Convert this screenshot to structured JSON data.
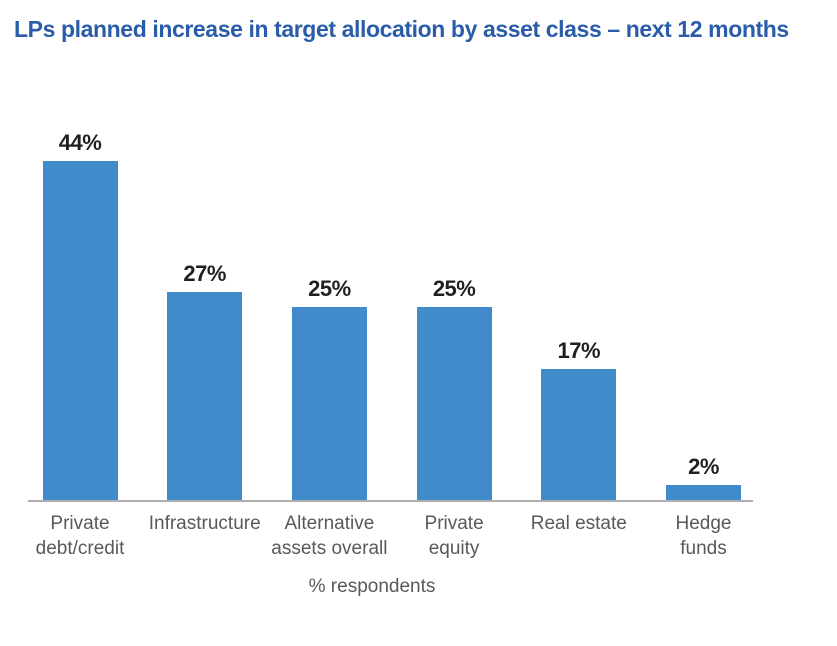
{
  "page": {
    "title": "LPs planned increase in target allocation by asset class – next 12 months"
  },
  "colors": {
    "bar": "#428BCA",
    "title_text": "#2B5CA9",
    "value_label_text": "#231F20",
    "category_label_text": "#58595B",
    "axis_line": "#ABADB0",
    "background": "#FFFFFF"
  },
  "chart_data": {
    "type": "bar",
    "title": "LPs planned increase in target allocation by asset class – next 12 months",
    "categories": [
      "Private debt/credit",
      "Infrastructure",
      "Alternative assets overall",
      "Private equity",
      "Real estate",
      "Hedge funds"
    ],
    "category_label_lines": [
      [
        "Private",
        "debt/credit"
      ],
      [
        "Infrastructure"
      ],
      [
        "Alternative",
        "assets overall"
      ],
      [
        "Private",
        "equity"
      ],
      [
        "Real estate"
      ],
      [
        "Hedge",
        "funds"
      ]
    ],
    "values": [
      44,
      27,
      25,
      25,
      17,
      2
    ],
    "value_labels": [
      "44%",
      "27%",
      "25%",
      "25%",
      "17%",
      "2%"
    ],
    "xlabel": "% respondents",
    "ylabel": "",
    "ylim": [
      0,
      46
    ],
    "grid": false,
    "legend": null,
    "bar_color": "#428BCA"
  }
}
